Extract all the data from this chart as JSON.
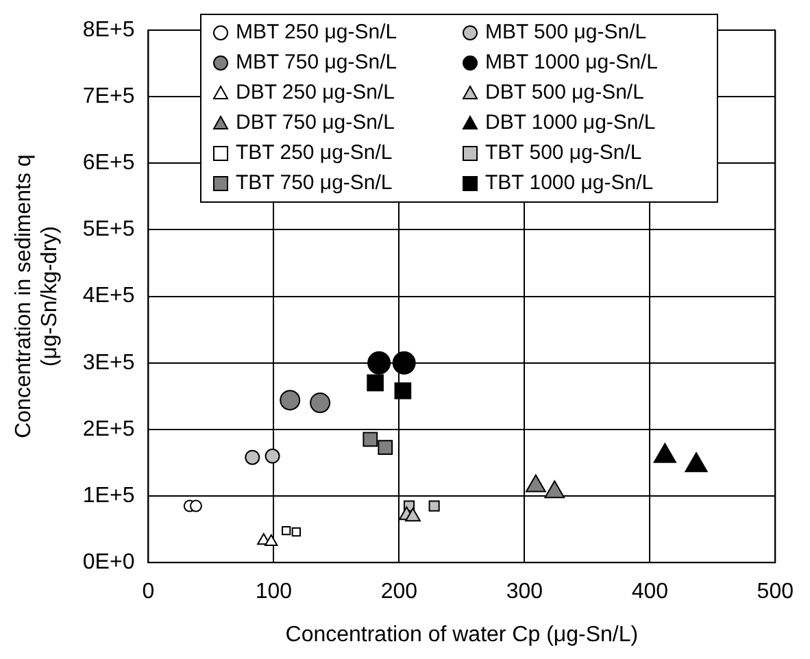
{
  "chart_data": {
    "type": "scatter",
    "xlabel": "Concentration of water Cp (μg-Sn/L)",
    "ylabel": "Concentration in sediments q\n(μg-Sn/kg-dry)",
    "xlim": [
      0,
      500
    ],
    "xticks": [
      0,
      100,
      200,
      300,
      400,
      500
    ],
    "ylim": [
      0,
      800000
    ],
    "yticks": [
      {
        "value": 0,
        "label": "0E+0"
      },
      {
        "value": 100000,
        "label": "1E+5"
      },
      {
        "value": 200000,
        "label": "2E+5"
      },
      {
        "value": 300000,
        "label": "3E+5"
      },
      {
        "value": 400000,
        "label": "4E+5"
      },
      {
        "value": 500000,
        "label": "5E+5"
      },
      {
        "value": 600000,
        "label": "6E+5"
      },
      {
        "value": 700000,
        "label": "7E+5"
      },
      {
        "value": 800000,
        "label": "8E+5"
      }
    ],
    "grid": true,
    "legend": "top",
    "series": [
      {
        "name": "MBT 250 μg-Sn/L",
        "color": "#ffffff",
        "marker": "circle",
        "x": [
          33,
          38
        ],
        "values": [
          85000,
          85000
        ]
      },
      {
        "name": "MBT 500 μg-Sn/L",
        "color": "#c0c0c0",
        "marker": "circle",
        "x": [
          83,
          99
        ],
        "values": [
          158000,
          160000
        ]
      },
      {
        "name": "MBT 750 μg-Sn/L",
        "color": "#808080",
        "marker": "circle",
        "x": [
          113,
          137
        ],
        "values": [
          244000,
          240000
        ]
      },
      {
        "name": "MBT 1000 μg-Sn/L",
        "color": "#000000",
        "marker": "circle",
        "x": [
          184,
          204
        ],
        "values": [
          300000,
          300000
        ]
      },
      {
        "name": "DBT 250 μg-Sn/L",
        "color": "#ffffff",
        "marker": "triangle",
        "x": [
          92,
          98
        ],
        "values": [
          33000,
          31000
        ]
      },
      {
        "name": "DBT 500 μg-Sn/L",
        "color": "#c0c0c0",
        "marker": "triangle",
        "x": [
          206,
          211
        ],
        "values": [
          71000,
          69000
        ]
      },
      {
        "name": "DBT 750 μg-Sn/L",
        "color": "#808080",
        "marker": "triangle",
        "x": [
          309,
          324
        ],
        "values": [
          115000,
          106000
        ]
      },
      {
        "name": "DBT 1000 μg-Sn/L",
        "color": "#000000",
        "marker": "triangle",
        "x": [
          412,
          437
        ],
        "values": [
          160000,
          146000
        ]
      },
      {
        "name": "TBT 250 μg-Sn/L",
        "color": "#ffffff",
        "marker": "square",
        "x": [
          110,
          118
        ],
        "values": [
          48000,
          46000
        ]
      },
      {
        "name": "TBT 500 μg-Sn/L",
        "color": "#c0c0c0",
        "marker": "square",
        "x": [
          208,
          228
        ],
        "values": [
          85000,
          85000
        ]
      },
      {
        "name": "TBT 750 μg-Sn/L",
        "color": "#808080",
        "marker": "square",
        "x": [
          177,
          189
        ],
        "values": [
          185000,
          173000
        ]
      },
      {
        "name": "TBT 1000 μg-Sn/L",
        "color": "#000000",
        "marker": "square",
        "x": [
          181,
          203
        ],
        "values": [
          270000,
          258000
        ]
      }
    ]
  }
}
